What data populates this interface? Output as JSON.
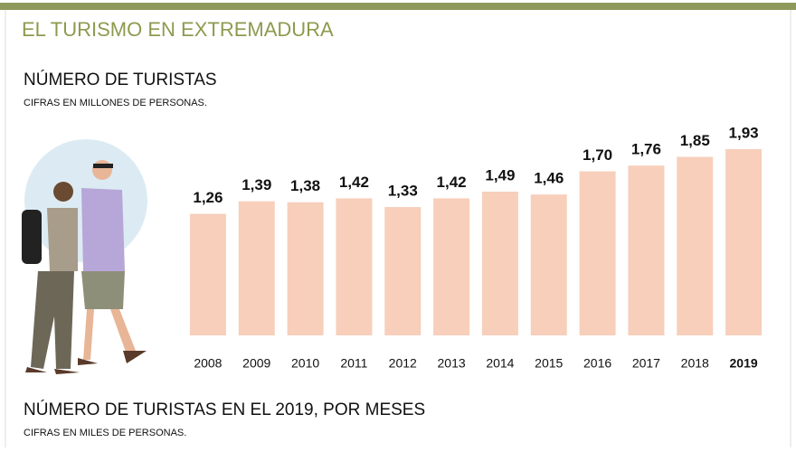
{
  "header": {
    "title": "EL TURISMO EN EXTREMADURA"
  },
  "chart_data": {
    "type": "bar",
    "title": "NÚMERO DE TURISTAS",
    "subtitle": "CIFRAS EN MILLONES DE PERSONAS.",
    "categories": [
      "2008",
      "2009",
      "2010",
      "2011",
      "2012",
      "2013",
      "2014",
      "2015",
      "2016",
      "2017",
      "2018",
      "2019"
    ],
    "values": [
      1.26,
      1.39,
      1.38,
      1.42,
      1.33,
      1.42,
      1.49,
      1.46,
      1.7,
      1.76,
      1.85,
      1.93
    ],
    "value_labels": [
      "1,26",
      "1,39",
      "1,38",
      "1,42",
      "1,33",
      "1,42",
      "1,49",
      "1,46",
      "1,70",
      "1,76",
      "1,85",
      "1,93"
    ],
    "color": "#f7cfbb"
  },
  "next_section": {
    "title": "NÚMERO DE TURISTAS EN EL 2019, POR MESES",
    "note": "CIFRAS EN MILES DE PERSONAS."
  }
}
